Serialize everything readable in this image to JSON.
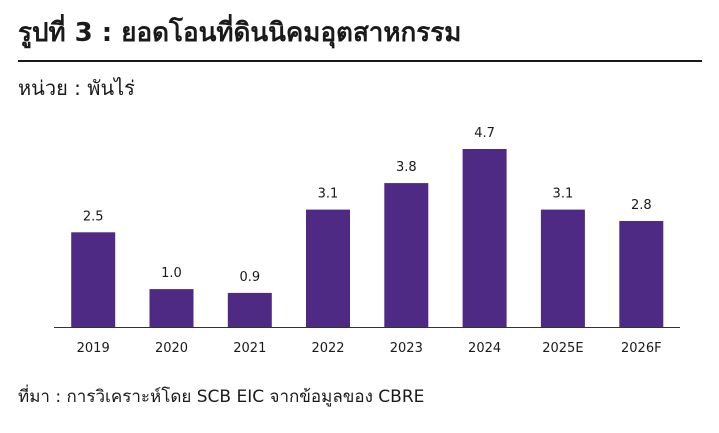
{
  "header": {
    "title": "รูปที่ 3 : ยอดโอนที่ดินนิคมอุตสาหกรรม",
    "unit_label": "หน่วย : พันไร่"
  },
  "footer": {
    "source": "ที่มา : การวิเคราะห์โดย SCB EIC จากข้อมูลของ CBRE"
  },
  "chart_data": {
    "type": "bar",
    "title": "รูปที่ 3 : ยอดโอนที่ดินนิคมอุตสาหกรรม",
    "ylabel": "หน่วย : พันไร่",
    "xlabel": "",
    "categories": [
      "2019",
      "2020",
      "2021",
      "2022",
      "2023",
      "2024",
      "2025E",
      "2026F"
    ],
    "values": [
      2.5,
      1.0,
      0.9,
      3.1,
      3.8,
      4.7,
      3.1,
      2.8
    ],
    "value_labels": [
      "2.5",
      "1.0",
      "0.9",
      "3.1",
      "3.8",
      "4.7",
      "3.1",
      "2.8"
    ],
    "ylim": [
      0,
      5
    ],
    "bar_color": "#4e2a84",
    "grid": false,
    "legend": "none"
  }
}
